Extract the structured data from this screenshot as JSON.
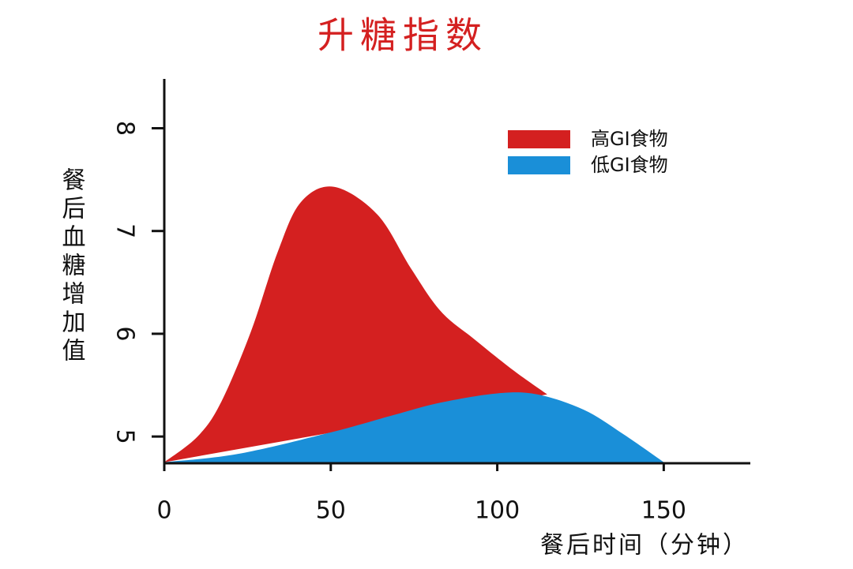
{
  "chart_data": {
    "type": "area",
    "title": "升糖指数",
    "x_label": "餐后时间（分钟）",
    "y_label": "餐后血糖增加值",
    "series": [
      {
        "name": "高GI食物",
        "color": "#d42020",
        "x": [
          0,
          10,
          17,
          26,
          34,
          41,
          51,
          64,
          74,
          83,
          93,
          105,
          115
        ],
        "values": [
          4.75,
          5.0,
          5.33,
          6.02,
          6.79,
          7.28,
          7.43,
          7.16,
          6.64,
          6.22,
          5.95,
          5.64,
          5.41
        ]
      },
      {
        "name": "低GI食物",
        "color": "#1a8fd8",
        "x": [
          0,
          22,
          50,
          69,
          83,
          100,
          112,
          126,
          138,
          150
        ],
        "values": [
          4.75,
          4.83,
          5.04,
          5.21,
          5.33,
          5.42,
          5.41,
          5.26,
          5.02,
          4.75
        ]
      }
    ],
    "xlim": [
      0,
      176
    ],
    "xticks": [
      0,
      50,
      100,
      150
    ],
    "ylim": [
      4.74,
      8.48
    ],
    "yticks": [
      5,
      6,
      7,
      8
    ],
    "legend": "top-right"
  }
}
